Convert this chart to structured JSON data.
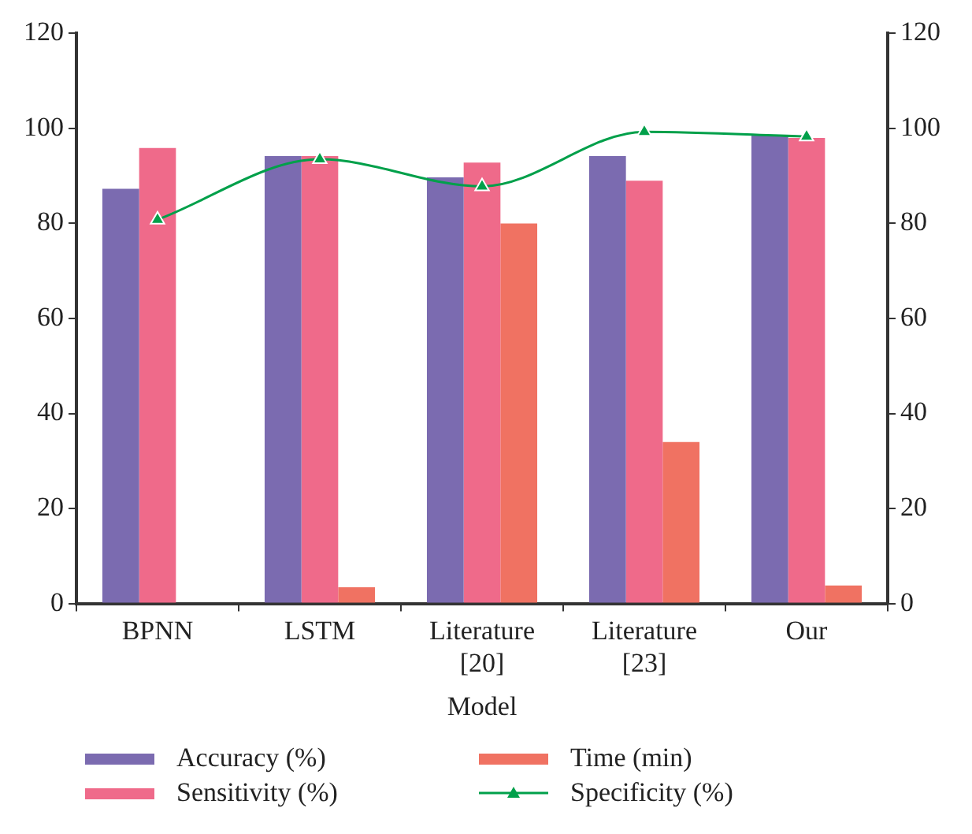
{
  "chart_data": {
    "type": "bar",
    "xlabel": "Model",
    "categories": [
      "BPNN",
      "LSTM",
      "Literature\n[20]",
      "Literature\n[23]",
      "Our"
    ],
    "series": [
      {
        "name": "Accuracy (%)",
        "color": "#7b6bb0",
        "values": [
          87.3,
          94.2,
          89.7,
          94.2,
          98.6
        ]
      },
      {
        "name": "Sensitivity (%)",
        "color": "#ef6a8a",
        "values": [
          95.9,
          94.2,
          92.8,
          89,
          98
        ]
      },
      {
        "name": "Time (min)",
        "color": "#f07262",
        "values": [
          null,
          3.4,
          80,
          34,
          3.8
        ]
      },
      {
        "name": "Specificity (%)",
        "type": "line",
        "color": "#00a04a",
        "marker": "triangle",
        "values": [
          80.8,
          93.5,
          87.8,
          99.3,
          98.3
        ]
      }
    ],
    "ylim": [
      0,
      120
    ],
    "yticks": [
      0,
      20,
      40,
      60,
      80,
      100,
      120
    ],
    "y2lim": [
      0,
      120
    ],
    "y2ticks": [
      0,
      20,
      40,
      60,
      80,
      100,
      120
    ],
    "grid": false,
    "legend": "bottom"
  }
}
